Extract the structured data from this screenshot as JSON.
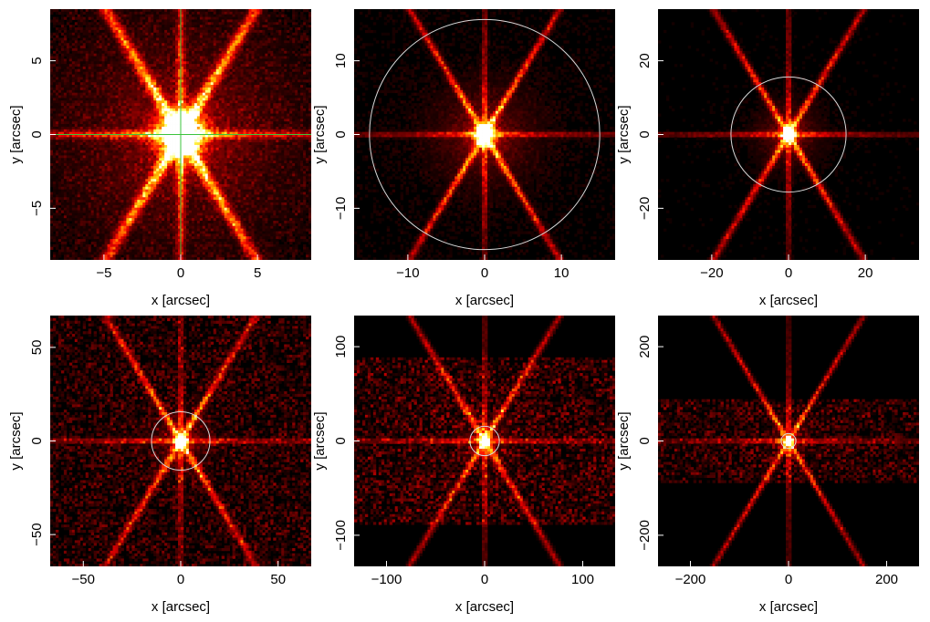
{
  "chart_data": [
    {
      "type": "heatmap",
      "xlabel": "x [arcsec]",
      "ylabel": "y [arcsec]",
      "xlim": [
        -8.5,
        8.5
      ],
      "ylim": [
        -8.5,
        8.5
      ],
      "xticks": [
        -5,
        0,
        5
      ],
      "yticks": [
        -5,
        0,
        5
      ],
      "core_radius": 1.3,
      "spike_strength": 0.7,
      "spike_width": 0.35,
      "noise": 0.12,
      "circle_radius": null,
      "crosshair": true,
      "band_half_height": null
    },
    {
      "type": "heatmap",
      "xlabel": "x [arcsec]",
      "ylabel": "y [arcsec]",
      "xlim": [
        -17,
        17
      ],
      "ylim": [
        -17,
        17
      ],
      "xticks": [
        -10,
        0,
        10
      ],
      "yticks": [
        -10,
        0,
        10
      ],
      "core_radius": 1.2,
      "spike_strength": 0.55,
      "spike_width": 0.4,
      "noise": 0.05,
      "circle_radius": 15,
      "crosshair": false,
      "band_half_height": null
    },
    {
      "type": "heatmap",
      "xlabel": "x [arcsec]",
      "ylabel": "y [arcsec]",
      "xlim": [
        -34,
        34
      ],
      "ylim": [
        -34,
        34
      ],
      "xticks": [
        -20,
        0,
        20
      ],
      "yticks": [
        -20,
        0,
        20
      ],
      "core_radius": 1.5,
      "spike_strength": 0.5,
      "spike_width": 0.8,
      "noise": 0.03,
      "circle_radius": 15,
      "crosshair": false,
      "band_half_height": null
    },
    {
      "type": "heatmap",
      "xlabel": "x [arcsec]",
      "ylabel": "y [arcsec]",
      "xlim": [
        -67,
        67
      ],
      "ylim": [
        -67,
        67
      ],
      "xticks": [
        -50,
        0,
        50
      ],
      "yticks": [
        -50,
        0,
        50
      ],
      "core_radius": 2.5,
      "spike_strength": 0.5,
      "spike_width": 1.6,
      "noise": 0.2,
      "circle_radius": 15,
      "crosshair": false,
      "band_half_height": null
    },
    {
      "type": "heatmap",
      "xlabel": "x [arcsec]",
      "ylabel": "y [arcsec]",
      "xlim": [
        -133,
        133
      ],
      "ylim": [
        -133,
        133
      ],
      "xticks": [
        -100,
        0,
        100
      ],
      "yticks": [
        -100,
        0,
        100
      ],
      "core_radius": 4,
      "spike_strength": 0.45,
      "spike_width": 3,
      "noise": 0.25,
      "circle_radius": 15,
      "crosshair": false,
      "band_half_height": 90
    },
    {
      "type": "heatmap",
      "xlabel": "x [arcsec]",
      "ylabel": "y [arcsec]",
      "xlim": [
        -266,
        266
      ],
      "ylim": [
        -266,
        266
      ],
      "xticks": [
        -200,
        0,
        200
      ],
      "yticks": [
        -200,
        0,
        200
      ],
      "core_radius": 6,
      "spike_strength": 0.45,
      "spike_width": 5,
      "noise": 0.22,
      "circle_radius": 15,
      "crosshair": false,
      "band_half_height": 90
    }
  ]
}
